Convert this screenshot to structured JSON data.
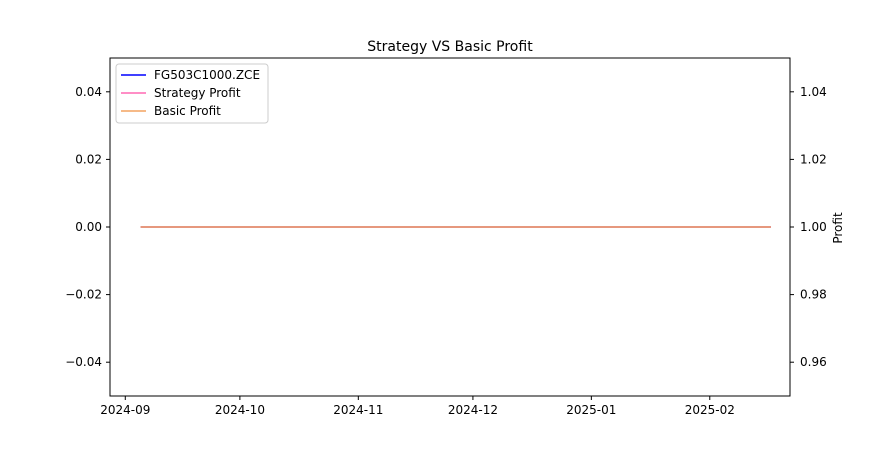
{
  "chart_data": {
    "type": "line",
    "title": "Strategy VS Basic Profit",
    "xlabel": "",
    "ylabel_left": "",
    "ylabel_right": "Profit",
    "x_range": [
      "2024-08-28",
      "2025-02-22"
    ],
    "ylim_left": [
      -0.05,
      0.05
    ],
    "ylim_right": [
      0.95,
      1.05
    ],
    "x_ticks": [
      {
        "label": "2024-09",
        "date": "2024-09-01"
      },
      {
        "label": "2024-10",
        "date": "2024-10-01"
      },
      {
        "label": "2024-11",
        "date": "2024-11-01"
      },
      {
        "label": "2024-12",
        "date": "2024-12-01"
      },
      {
        "label": "2025-01",
        "date": "2025-01-01"
      },
      {
        "label": "2025-02",
        "date": "2025-02-01"
      }
    ],
    "y_ticks_left": [
      {
        "label": "0.04",
        "value": 0.04
      },
      {
        "label": "0.02",
        "value": 0.02
      },
      {
        "label": "0.00",
        "value": 0.0
      },
      {
        "label": "−0.02",
        "value": -0.02
      },
      {
        "label": "−0.04",
        "value": -0.04
      }
    ],
    "y_ticks_right": [
      {
        "label": "1.04",
        "value": 1.04
      },
      {
        "label": "1.02",
        "value": 1.02
      },
      {
        "label": "1.00",
        "value": 1.0
      },
      {
        "label": "0.98",
        "value": 0.98
      },
      {
        "label": "0.96",
        "value": 0.96
      }
    ],
    "series": [
      {
        "name": "FG503C1000.ZCE",
        "axis": "left",
        "color": "#0000ff",
        "x": [
          "2024-09-05",
          "2025-02-17"
        ],
        "y": [
          0.0,
          0.0
        ]
      },
      {
        "name": "Strategy Profit",
        "axis": "right",
        "color": "#ff69b4",
        "x": [
          "2024-09-05",
          "2025-02-17"
        ],
        "y": [
          1.0,
          1.0
        ]
      },
      {
        "name": "Basic Profit",
        "axis": "right",
        "color": "#f4a460",
        "x": [
          "2024-09-05",
          "2025-02-17"
        ],
        "y": [
          1.0,
          1.0
        ]
      }
    ],
    "legend_position": "top-left",
    "grid": false
  }
}
